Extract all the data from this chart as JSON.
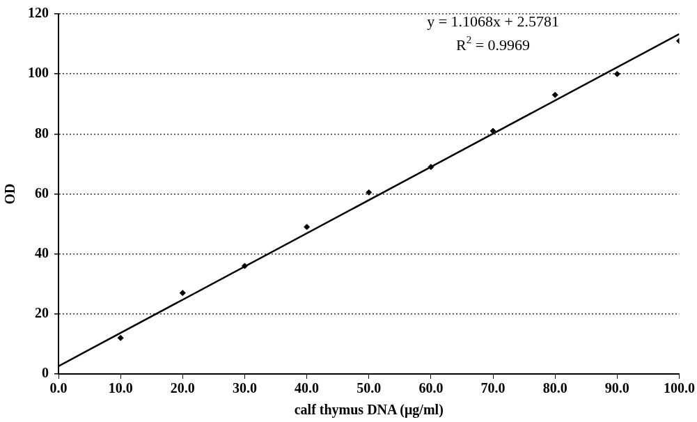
{
  "chart_data": {
    "type": "scatter",
    "xlabel": "calf thymus DNA (μg/ml)",
    "ylabel": "OD",
    "xlim": [
      0,
      100
    ],
    "ylim": [
      0,
      120
    ],
    "xticks": [
      {
        "value": 0,
        "label": "0.0"
      },
      {
        "value": 10,
        "label": "10.0"
      },
      {
        "value": 20,
        "label": "20.0"
      },
      {
        "value": 30,
        "label": "30.0"
      },
      {
        "value": 40,
        "label": "40.0"
      },
      {
        "value": 50,
        "label": "50.0"
      },
      {
        "value": 60,
        "label": "60.0"
      },
      {
        "value": 70,
        "label": "70.0"
      },
      {
        "value": 80,
        "label": "80.0"
      },
      {
        "value": 90,
        "label": "90.0"
      },
      {
        "value": 100,
        "label": "100.0"
      }
    ],
    "yticks": [
      0,
      20,
      40,
      60,
      80,
      100,
      120
    ],
    "grid": "y",
    "legend": false,
    "series": [
      {
        "color": "#000000",
        "marker": "diamond",
        "x": [
          10,
          20,
          30,
          40,
          50,
          60,
          70,
          80,
          90,
          100
        ],
        "values": [
          12,
          27,
          36,
          49,
          60.5,
          69,
          81,
          93,
          100,
          111
        ]
      },
      {
        "type": "line",
        "color": "#000000",
        "marker": "none",
        "x": [
          0,
          100
        ],
        "values": [
          2.6,
          113.3
        ]
      }
    ],
    "annotations": [
      "y = 1.1068x + 2.5781",
      "R$^{2}$ = 0.9969"
    ]
  }
}
